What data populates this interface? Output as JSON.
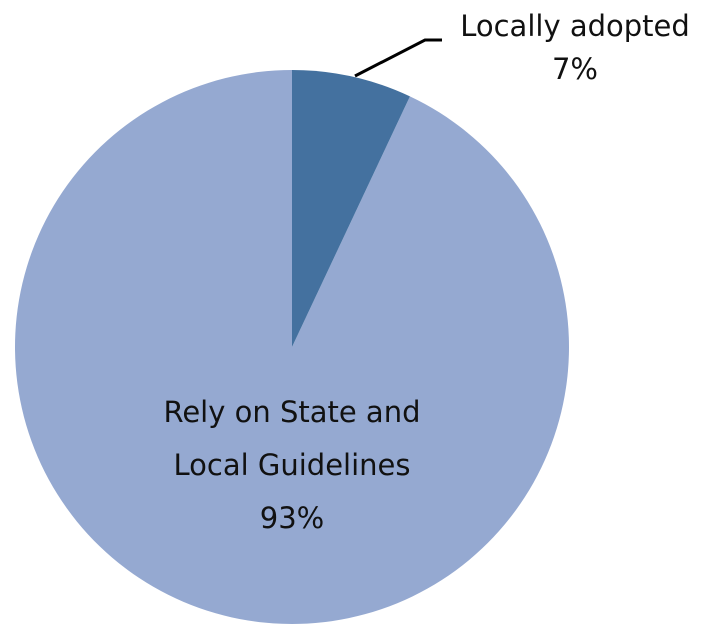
{
  "chart_data": {
    "type": "pie",
    "categories": [
      "Locally adopted",
      "Rely on State and Local Guidelines"
    ],
    "values": [
      7,
      93
    ],
    "value_labels": [
      "7%",
      "93%"
    ],
    "colors": [
      "#44719f",
      "#95a9d1"
    ]
  }
}
